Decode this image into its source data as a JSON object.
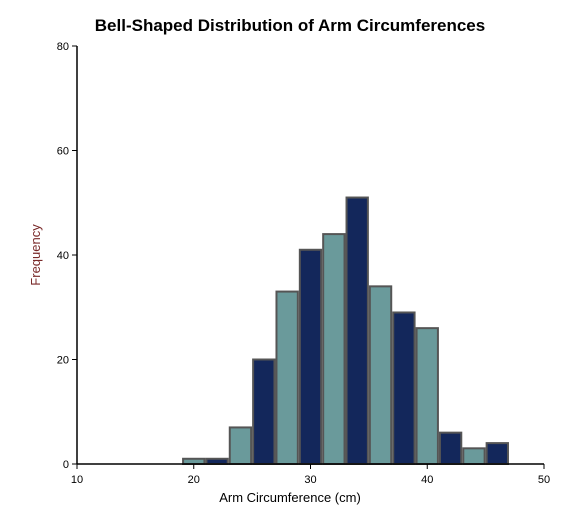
{
  "chart_data": {
    "type": "bar",
    "title": "Bell-Shaped Distribution of Arm Circumferences",
    "xlabel": "Arm Circumference (cm)",
    "ylabel": "Frequency",
    "xlim": [
      10,
      50
    ],
    "ylim": [
      0,
      80
    ],
    "x_ticks": [
      10,
      20,
      30,
      40,
      50
    ],
    "y_ticks": [
      0,
      20,
      40,
      60,
      80
    ],
    "bin_width": 2,
    "bins": [
      {
        "start": 19,
        "end": 21,
        "value": 1
      },
      {
        "start": 21,
        "end": 23,
        "value": 1
      },
      {
        "start": 23,
        "end": 25,
        "value": 7
      },
      {
        "start": 25,
        "end": 27,
        "value": 20
      },
      {
        "start": 27,
        "end": 29,
        "value": 33
      },
      {
        "start": 29,
        "end": 31,
        "value": 41
      },
      {
        "start": 31,
        "end": 33,
        "value": 44
      },
      {
        "start": 33,
        "end": 35,
        "value": 51
      },
      {
        "start": 35,
        "end": 37,
        "value": 34
      },
      {
        "start": 37,
        "end": 39,
        "value": 29
      },
      {
        "start": 39,
        "end": 41,
        "value": 26
      },
      {
        "start": 41,
        "end": 43,
        "value": 6
      },
      {
        "start": 43,
        "end": 45,
        "value": 3
      },
      {
        "start": 45,
        "end": 47,
        "value": 4
      }
    ],
    "colors": [
      "#6a9a9b",
      "#13275b"
    ],
    "ylabel_color": "#7a2a2a",
    "xlabel_color": "#000000",
    "grid": false,
    "legend": "none"
  }
}
